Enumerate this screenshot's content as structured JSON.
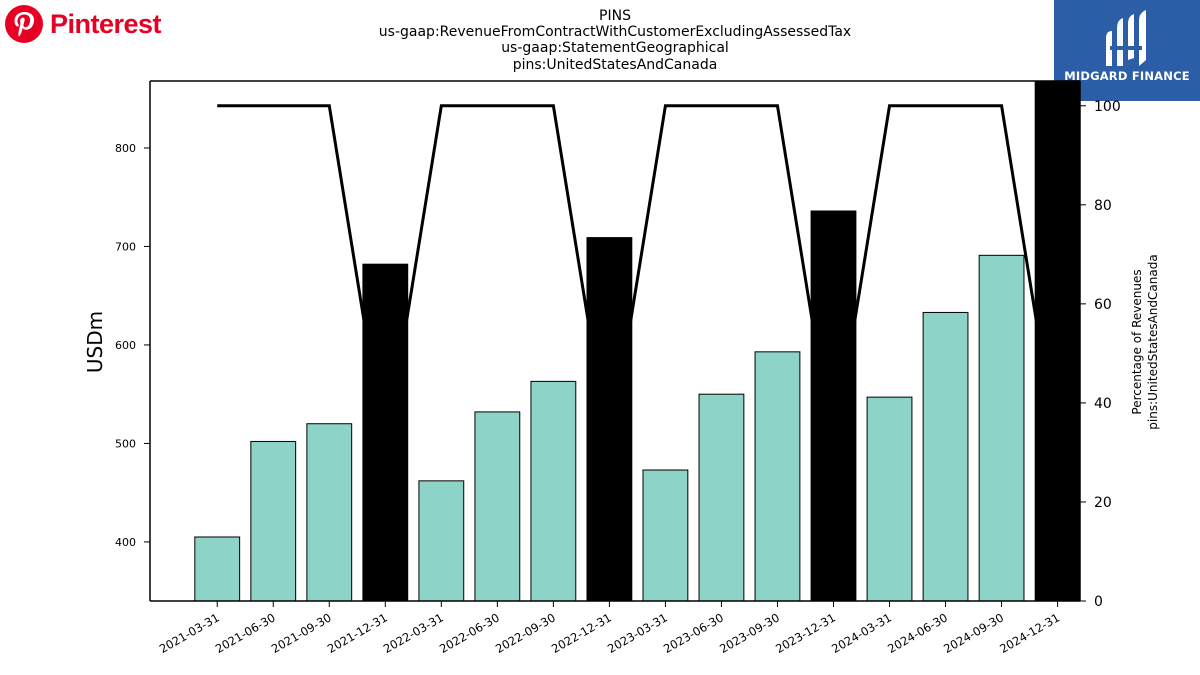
{
  "branding": {
    "left_logo_text": "Pinterest",
    "right_logo_text": "MIDGARD FINANCE",
    "left_logo_color": "#e60023",
    "right_logo_bg": "#2b5ea7"
  },
  "chart_data": {
    "type": "bar",
    "title_lines": [
      "PINS",
      "us-gaap:RevenueFromContractWithCustomerExcludingAssessedTax",
      "us-gaap:StatementGeographical",
      "pins:UnitedStatesAndCanada"
    ],
    "ylabel": "USDm",
    "y2label_lines": [
      "Percentage of Revenues",
      "pins:UnitedStatesAndCanada"
    ],
    "categories": [
      "2021-03-31",
      "2021-06-30",
      "2021-09-30",
      "2021-12-31",
      "2022-03-31",
      "2022-06-30",
      "2022-09-30",
      "2022-12-31",
      "2023-03-31",
      "2023-06-30",
      "2023-09-30",
      "2023-12-31",
      "2024-03-31",
      "2024-06-30",
      "2024-09-30",
      "2024-12-31"
    ],
    "values": [
      405,
      502,
      520,
      682,
      462,
      532,
      563,
      709,
      473,
      550,
      593,
      736,
      547,
      633,
      691,
      870
    ],
    "bar_kind": [
      "quarter",
      "quarter",
      "quarter",
      "annual",
      "quarter",
      "quarter",
      "quarter",
      "annual",
      "quarter",
      "quarter",
      "quarter",
      "annual",
      "quarter",
      "quarter",
      "quarter",
      "annual"
    ],
    "percent_line": [
      100,
      100,
      100,
      30,
      100,
      100,
      100,
      30,
      100,
      100,
      100,
      30,
      100,
      100,
      100,
      30
    ],
    "ylim": [
      340,
      868
    ],
    "yticks": [
      400,
      500,
      600,
      700,
      800
    ],
    "y2lim": [
      0,
      105
    ],
    "y2ticks": [
      0,
      20,
      40,
      60,
      80,
      100
    ],
    "grid": false,
    "colors": {
      "quarter": "#8dd3c7",
      "annual": "#000000",
      "line": "#000000"
    }
  }
}
